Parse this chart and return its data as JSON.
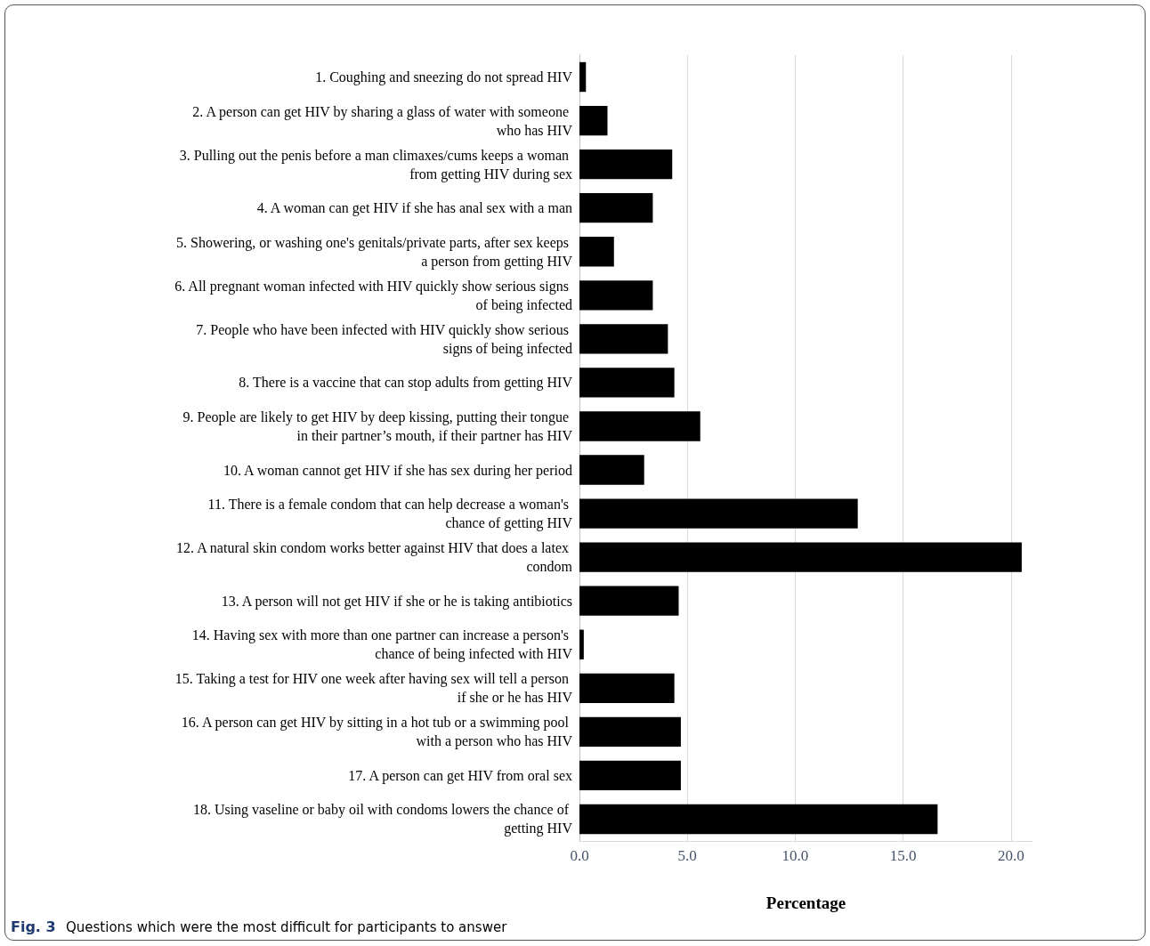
{
  "chart_data": {
    "type": "bar",
    "orientation": "horizontal",
    "xlabel": "Percentage",
    "categories": [
      "1. Coughing and sneezing do not spread HIV",
      "2. A person can get HIV by sharing a glass of water with someone who has HIV",
      "3. Pulling out the penis before a man climaxes/cums keeps a woman from getting HIV during sex",
      "4. A woman can get HIV if she has anal sex with a man",
      "5. Showering, or washing one's genitals/private parts, after sex keeps a person from getting HIV",
      "6. All pregnant woman infected with HIV quickly show serious signs of being infected",
      "7. People who have been infected with HIV quickly show serious signs of being infected",
      "8. There is a vaccine that can stop adults from getting HIV",
      "9. People are likely to get HIV by deep kissing, putting their tongue in their partner’s mouth, if their partner has HIV",
      "10. A woman cannot get HIV if she has sex during her period",
      "11. There is a female condom that can help decrease a woman's chance of getting HIV",
      "12. A natural skin condom works better against HIV that does a latex condom",
      "13. A person will not get HIV if she or he is taking antibiotics",
      "14. Having sex with more than one partner can increase a person's chance of being infected with HIV",
      "15. Taking a test for HIV one week after having sex will tell a person if she or he has HIV",
      "16. A person can get HIV by sitting in a hot tub or a swimming pool with a person who has HIV",
      "17. A person can get HIV from oral sex",
      "18. Using vaseline or baby oil with condoms lowers the chance of getting HIV"
    ],
    "values": [
      0.3,
      1.3,
      4.3,
      3.4,
      1.6,
      3.4,
      4.1,
      4.4,
      5.6,
      3.0,
      12.9,
      20.5,
      4.6,
      0.2,
      4.4,
      4.7,
      4.7,
      16.6
    ],
    "color": "#000000",
    "xlim": [
      0,
      21
    ],
    "xticks": [
      {
        "value": 0,
        "label": "0.0"
      },
      {
        "value": 5,
        "label": "5.0"
      },
      {
        "value": 10,
        "label": "10.0"
      },
      {
        "value": 15,
        "label": "15.0"
      },
      {
        "value": 20,
        "label": "20.0"
      }
    ],
    "grid": "x",
    "annotations": [
      "Fig. 3",
      "Questions which were the most difficult for participants to answer"
    ]
  }
}
